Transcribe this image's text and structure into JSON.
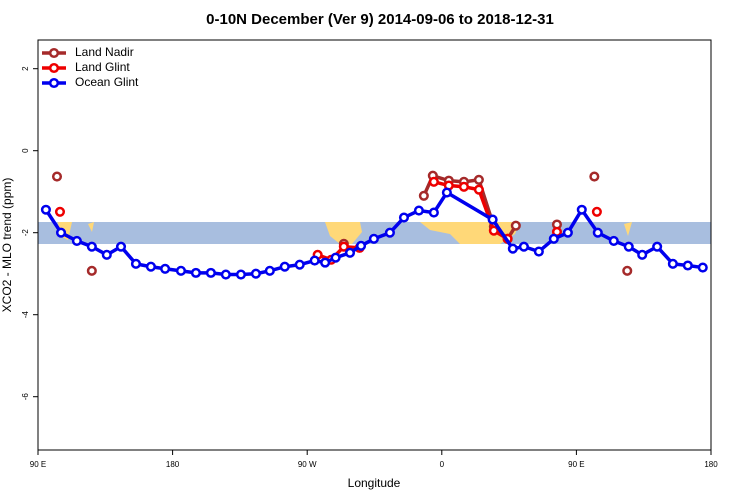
{
  "chart_data": {
    "type": "line",
    "title": "0-10N December (Ver 9)   2014-09-06 to 2018-12-31",
    "x_label": "Longitude",
    "y_label": "XCO2 - MLO trend (ppm)",
    "xlim": [
      90,
      540
    ],
    "ylim": [
      -7.3,
      2.7
    ],
    "xticks": [
      {
        "value": 90,
        "label": "90 E"
      },
      180,
      {
        "value": 270,
        "label": "90 W"
      },
      {
        "value": 360,
        "label": "0"
      },
      {
        "value": 450,
        "label": "90 E"
      },
      {
        "value": 540,
        "label": "180"
      }
    ],
    "yticks": [
      2,
      0,
      -2,
      -4,
      -6
    ],
    "legend": "top-left",
    "series": [
      {
        "name": "Land Nadir",
        "color": "#a52a2a",
        "x": [
          102.7,
          null,
          126,
          null,
          294.5,
          null,
          348,
          354,
          364.7,
          374.8,
          384.8,
          394.8,
          404,
          409.5,
          null,
          437,
          null,
          462,
          null,
          484
        ],
        "values": [
          -0.63,
          null,
          -2.93,
          null,
          -2.27,
          null,
          -1.1,
          -0.61,
          -0.73,
          -0.76,
          -0.71,
          -1.85,
          -2.15,
          -1.83,
          null,
          -1.8,
          null,
          -0.63,
          null,
          -2.93
        ]
      },
      {
        "name": "Land Glint",
        "color": "#ee0000",
        "x": [
          104.7,
          null,
          277,
          286,
          294.5,
          305,
          null,
          354.7,
          364.7,
          374.8,
          384.8,
          394.8,
          404,
          null,
          437,
          null,
          463.7
        ],
        "values": [
          -1.49,
          null,
          -2.54,
          -2.66,
          -2.34,
          -2.37,
          null,
          -0.76,
          -0.85,
          -0.88,
          -0.95,
          -1.95,
          -2.15,
          null,
          -1.98,
          null,
          -1.49
        ]
      },
      {
        "name": "Ocean Glint",
        "color": "#0000ee",
        "x": [
          95.3,
          105.4,
          116,
          126,
          136,
          145.5,
          155.5,
          165.5,
          175,
          185.6,
          195.6,
          205.6,
          215.6,
          225.7,
          235.7,
          245,
          255,
          265,
          275,
          282,
          289,
          298.6,
          306,
          314.6,
          325.3,
          334.7,
          344.7,
          354.7,
          363.4,
          394,
          407.5,
          414.9,
          424.9,
          434.9,
          444.3,
          453.6,
          464.3,
          475,
          485,
          494,
          504,
          514.5,
          524.5,
          534.5
        ],
        "values": [
          -1.44,
          -2.0,
          -2.2,
          -2.34,
          -2.54,
          -2.34,
          -2.76,
          -2.83,
          -2.88,
          -2.93,
          -2.98,
          -2.98,
          -3.02,
          -3.02,
          -3.0,
          -2.93,
          -2.83,
          -2.78,
          -2.68,
          -2.73,
          -2.61,
          -2.49,
          -2.32,
          -2.15,
          -2.0,
          -1.63,
          -1.46,
          -1.51,
          -1.02,
          -1.68,
          -2.39,
          -2.34,
          -2.46,
          -2.15,
          -2.0,
          -1.44,
          -2.0,
          -2.2,
          -2.34,
          -2.54,
          -2.34,
          -2.76,
          -2.8,
          -2.85
        ]
      }
    ]
  }
}
